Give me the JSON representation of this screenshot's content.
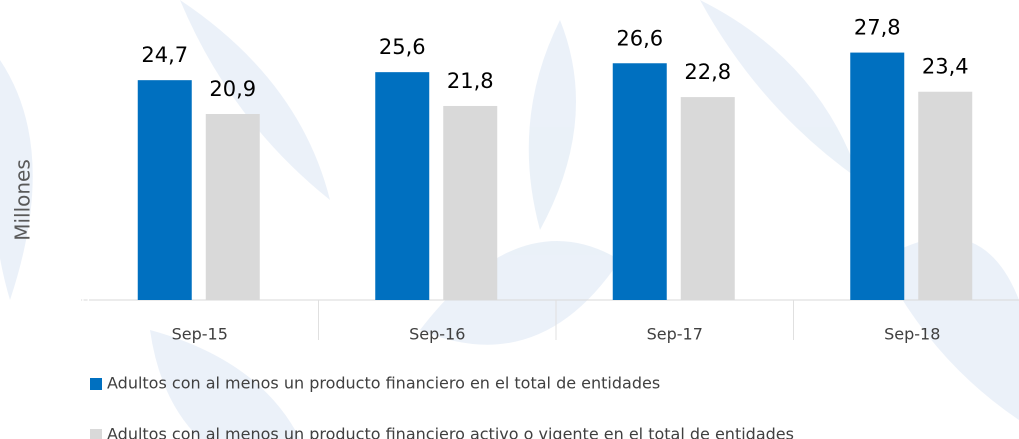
{
  "chart_data": {
    "type": "bar",
    "y_axis_label": "Millones",
    "categories": [
      "Sep-15",
      "Sep-16",
      "Sep-17",
      "Sep-18"
    ],
    "series": [
      {
        "name": "Adultos con al menos un producto financiero en el total de entidades",
        "color": "#0070c0",
        "values": [
          24.7,
          25.6,
          26.6,
          27.8
        ],
        "value_labels": [
          "24,7",
          "25,6",
          "26,6",
          "27,8"
        ]
      },
      {
        "name": "Adultos con al menos un producto financiero activo o vigente en el total de entidades",
        "color": "#d9d9d9",
        "values": [
          20.9,
          21.8,
          22.8,
          23.4
        ],
        "value_labels": [
          "20,9",
          "21,8",
          "22,8",
          "23,4"
        ]
      }
    ],
    "ylim": [
      0,
      30
    ],
    "yticks": [
      0,
      5,
      10,
      15,
      20,
      25
    ],
    "tick_label_color": "#ffffff"
  }
}
